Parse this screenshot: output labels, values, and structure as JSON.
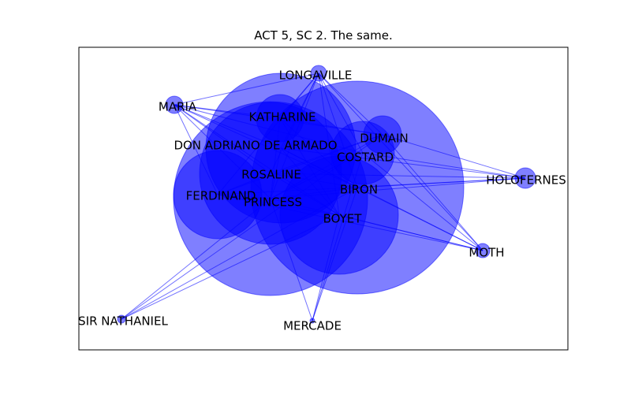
{
  "figure": {
    "title": "ACT 5, SC 2. The same.",
    "colors": {
      "node": "#0000ff",
      "edge": "#0000ff",
      "frame": "#000000",
      "label": "#000000"
    },
    "nodes": [
      {
        "id": "longaville",
        "label": "LONGAVILLE"
      },
      {
        "id": "maria",
        "label": "MARIA"
      },
      {
        "id": "katharine",
        "label": "KATHARINE"
      },
      {
        "id": "dumain",
        "label": "DUMAIN"
      },
      {
        "id": "armado",
        "label": "DON ADRIANO DE ARMADO"
      },
      {
        "id": "costard",
        "label": "COSTARD"
      },
      {
        "id": "rosaline",
        "label": "ROSALINE"
      },
      {
        "id": "holofernes",
        "label": "HOLOFERNES"
      },
      {
        "id": "biron",
        "label": "BIRON"
      },
      {
        "id": "ferdinand",
        "label": "FERDINAND"
      },
      {
        "id": "princess",
        "label": "PRINCESS"
      },
      {
        "id": "boyet",
        "label": "BOYET"
      },
      {
        "id": "moth",
        "label": "MOTH"
      },
      {
        "id": "nathaniel",
        "label": "SIR NATHANIEL"
      },
      {
        "id": "mercade",
        "label": "MERCADE"
      }
    ],
    "edges": [
      [
        "longaville",
        "maria"
      ],
      [
        "longaville",
        "katharine"
      ],
      [
        "longaville",
        "dumain"
      ],
      [
        "longaville",
        "armado"
      ],
      [
        "longaville",
        "costard"
      ],
      [
        "longaville",
        "rosaline"
      ],
      [
        "longaville",
        "biron"
      ],
      [
        "longaville",
        "ferdinand"
      ],
      [
        "longaville",
        "princess"
      ],
      [
        "longaville",
        "boyet"
      ],
      [
        "longaville",
        "moth"
      ],
      [
        "maria",
        "katharine"
      ],
      [
        "maria",
        "dumain"
      ],
      [
        "maria",
        "armado"
      ],
      [
        "maria",
        "costard"
      ],
      [
        "maria",
        "rosaline"
      ],
      [
        "maria",
        "biron"
      ],
      [
        "maria",
        "ferdinand"
      ],
      [
        "maria",
        "princess"
      ],
      [
        "maria",
        "boyet"
      ],
      [
        "katharine",
        "dumain"
      ],
      [
        "katharine",
        "biron"
      ],
      [
        "katharine",
        "princess"
      ],
      [
        "katharine",
        "boyet"
      ],
      [
        "dumain",
        "holofernes"
      ],
      [
        "dumain",
        "moth"
      ],
      [
        "dumain",
        "princess"
      ],
      [
        "dumain",
        "rosaline"
      ],
      [
        "dumain",
        "ferdinand"
      ],
      [
        "armado",
        "biron"
      ],
      [
        "armado",
        "boyet"
      ],
      [
        "armado",
        "moth"
      ],
      [
        "armado",
        "princess"
      ],
      [
        "armado",
        "holofernes"
      ],
      [
        "costard",
        "holofernes"
      ],
      [
        "costard",
        "princess"
      ],
      [
        "costard",
        "moth"
      ],
      [
        "rosaline",
        "biron"
      ],
      [
        "rosaline",
        "boyet"
      ],
      [
        "rosaline",
        "holofernes"
      ],
      [
        "rosaline",
        "ferdinand"
      ],
      [
        "holofernes",
        "biron"
      ],
      [
        "holofernes",
        "princess"
      ],
      [
        "holofernes",
        "ferdinand"
      ],
      [
        "biron",
        "moth"
      ],
      [
        "biron",
        "nathaniel"
      ],
      [
        "biron",
        "mercade"
      ],
      [
        "biron",
        "princess"
      ],
      [
        "ferdinand",
        "princess"
      ],
      [
        "ferdinand",
        "boyet"
      ],
      [
        "ferdinand",
        "moth"
      ],
      [
        "princess",
        "moth"
      ],
      [
        "princess",
        "nathaniel"
      ],
      [
        "princess",
        "mercade"
      ],
      [
        "boyet",
        "moth"
      ],
      [
        "boyet",
        "nathaniel"
      ],
      [
        "boyet",
        "mercade"
      ],
      [
        "costard",
        "mercade"
      ],
      [
        "dumain",
        "nathaniel"
      ]
    ]
  }
}
